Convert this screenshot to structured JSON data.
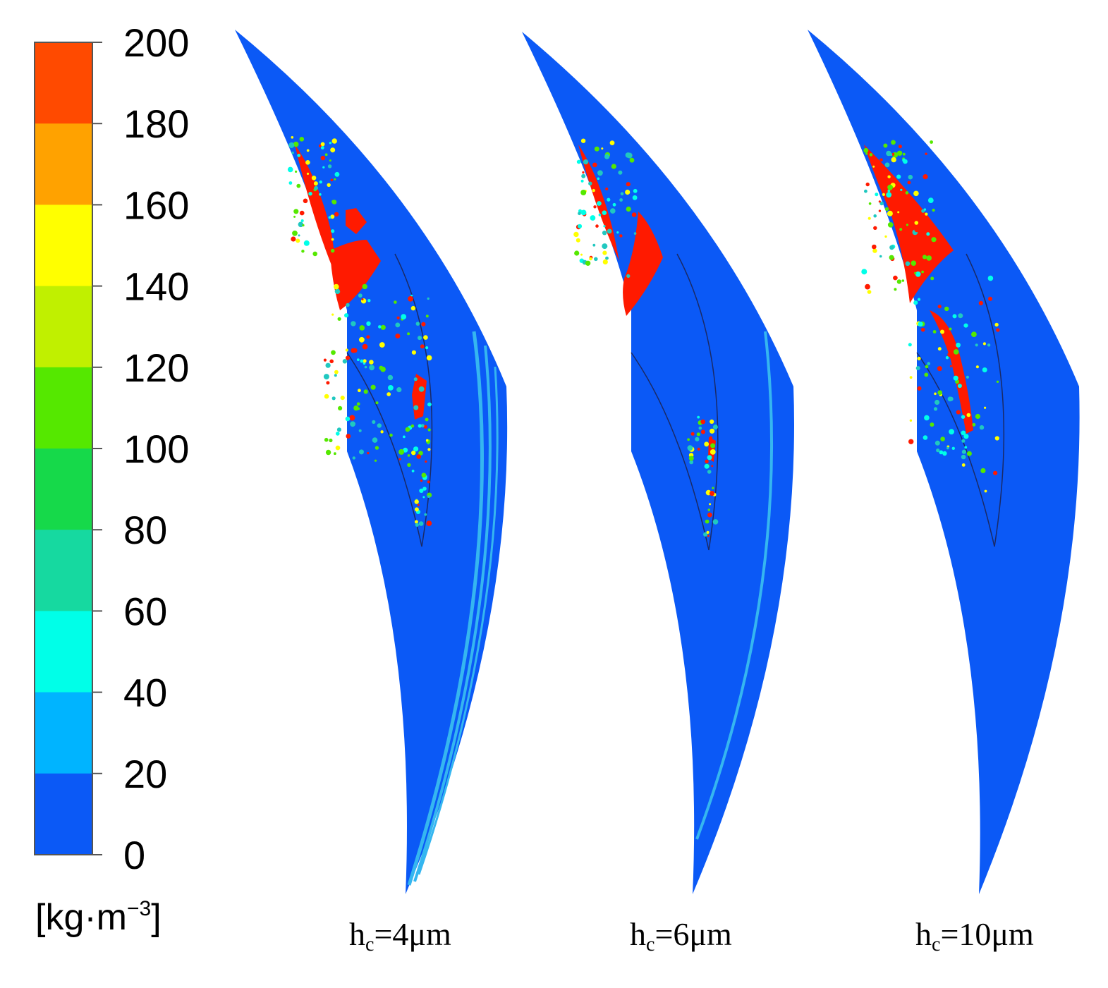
{
  "colorbar": {
    "ticks": [
      "200",
      "180",
      "160",
      "140",
      "120",
      "100",
      "80",
      "60",
      "40",
      "20",
      "0"
    ],
    "colors": [
      "#ff4a00",
      "#ffa200",
      "#ffff00",
      "#c0f000",
      "#55e800",
      "#16d94a",
      "#16d9a0",
      "#00ffe8",
      "#00b4ff",
      "#0b59f6"
    ],
    "unit": {
      "prefix": "[kg·m",
      "exponent": "−3",
      "suffix": "]"
    }
  },
  "panels": [
    {
      "label": {
        "main": "h",
        "sub": "c",
        "rest": "=4μm"
      }
    },
    {
      "label": {
        "main": "h",
        "sub": "c",
        "rest": "=6μm"
      }
    },
    {
      "label": {
        "main": "h",
        "sub": "c",
        "rest": "=10μm"
      }
    }
  ],
  "colors": {
    "background": "#0b59f6",
    "high": "#ff1a00",
    "mid": "#20c8c0",
    "edge": "#35b6f0"
  }
}
